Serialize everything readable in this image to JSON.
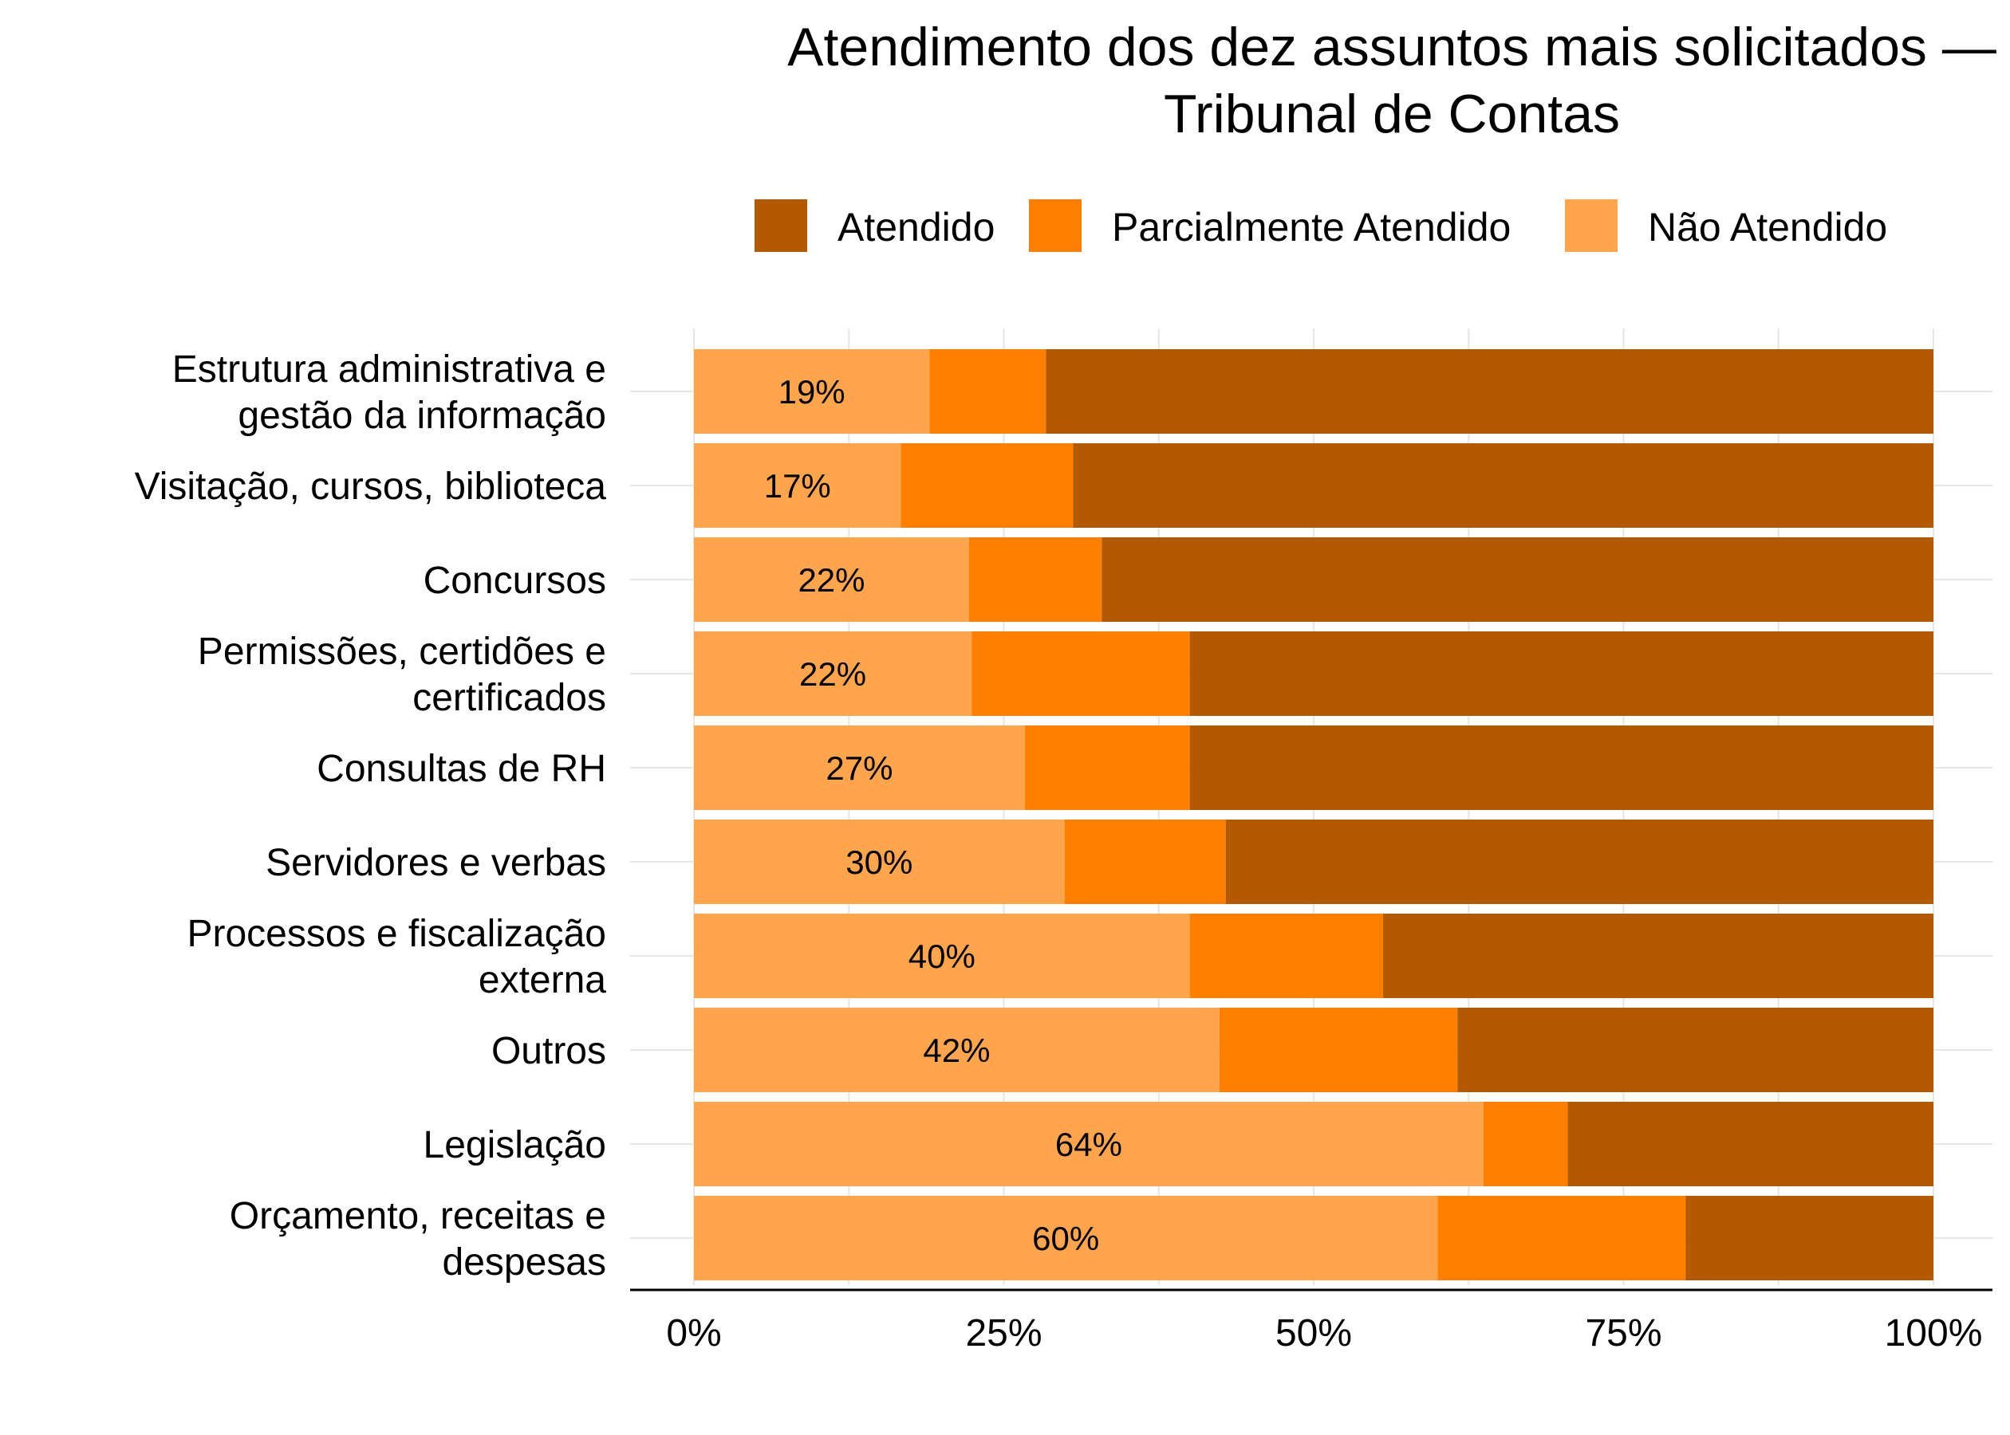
{
  "chart_data": {
    "type": "bar",
    "orientation": "horizontal",
    "stacked": "percent",
    "title_lines": [
      "Atendimento dos dez assuntos mais solicitados —",
      "Tribunal de Contas"
    ],
    "legend": {
      "placement": "top",
      "items": [
        {
          "name": "Atendido",
          "color": "#B35900"
        },
        {
          "name": "Parcialmente Atendido",
          "color": "#FF8000"
        },
        {
          "name": "Não Atendido",
          "color": "#FFA64D"
        }
      ]
    },
    "categories": [
      [
        "Estrutura administrativa e",
        "gestão da informação"
      ],
      [
        "Visitação, cursos, biblioteca"
      ],
      [
        "Concursos"
      ],
      [
        "Permissões, certidões e",
        "certificados"
      ],
      [
        "Consultas de RH"
      ],
      [
        "Servidores e verbas"
      ],
      [
        "Processos e fiscalização",
        "externa"
      ],
      [
        "Outros"
      ],
      [
        "Legislação"
      ],
      [
        "Orçamento, receitas e",
        "despesas"
      ]
    ],
    "series": [
      {
        "name": "Não Atendido",
        "color": "#FFA64D",
        "values": [
          19,
          16.7,
          22.2,
          22.4,
          26.7,
          29.9,
          40,
          42.4,
          63.7,
          60
        ]
      },
      {
        "name": "Parcialmente Atendido",
        "color": "#FF8000",
        "values": [
          9.4,
          13.9,
          10.7,
          17.6,
          13.3,
          13.0,
          15.6,
          19.2,
          6.8,
          20
        ]
      },
      {
        "name": "Atendido",
        "color": "#B35900",
        "values": [
          71.6,
          69.4,
          67.1,
          60,
          60,
          57.1,
          44.4,
          38.4,
          29.5,
          20
        ]
      }
    ],
    "data_labels": [
      "19%",
      "17%",
      "22%",
      "22%",
      "27%",
      "30%",
      "40%",
      "42%",
      "64%",
      "60%"
    ],
    "x_ticks": [
      "0%",
      "25%",
      "50%",
      "75%",
      "100%"
    ],
    "xlim": [
      0,
      100
    ],
    "grid": true
  }
}
